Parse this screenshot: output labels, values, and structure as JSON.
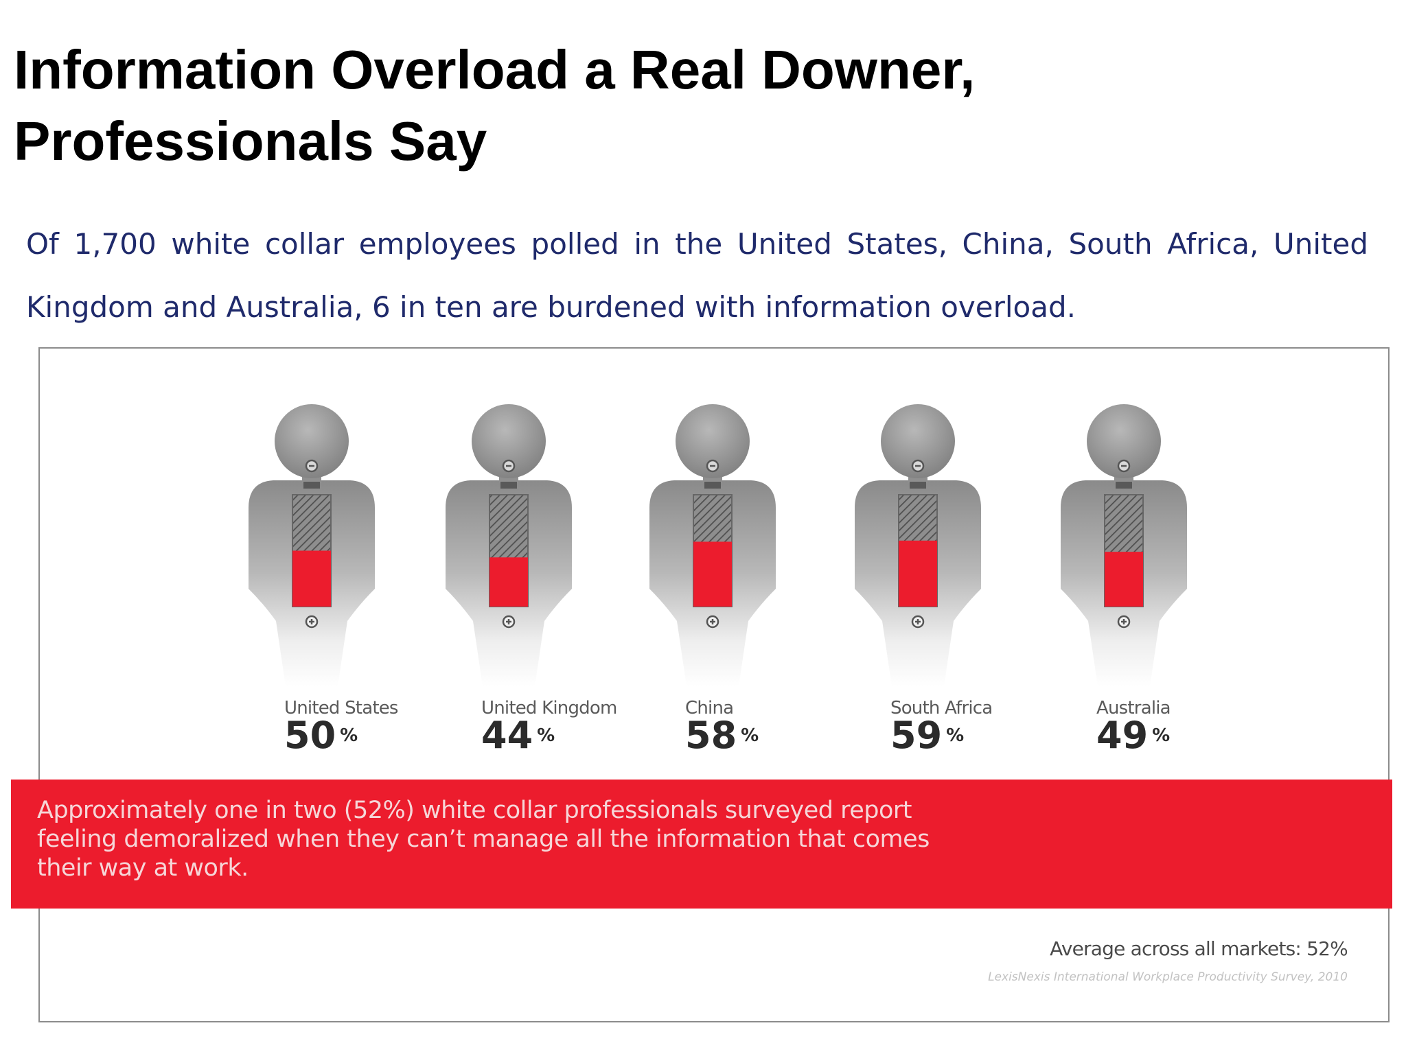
{
  "title": "Information Overload a Real Downer, Professionals Say",
  "intro": "Of 1,700 white collar employees polled in the United States, China, South Africa, United Kingdom and Australia, 6 in ten are burdened with information overload.",
  "band_text": "Approximately one in two (52%) white collar professionals surveyed report feeling demoralized when they can’t manage all the information that comes their way at work.",
  "average_note": "Average across all markets: 52%",
  "source_note": "LexisNexis International Workplace Productivity Survey, 2010",
  "colors": {
    "fill_red": "#ec1c2d",
    "figure_gray": "#9a9a9a",
    "title_black": "#000000",
    "intro_navy": "#1f2a6b"
  },
  "icons": {
    "battery_minus": "minus-icon",
    "battery_plus": "plus-icon"
  },
  "chart_data": {
    "type": "bar",
    "title": "",
    "xlabel": "",
    "ylabel": "",
    "ylim": [
      0,
      100
    ],
    "unit": "%",
    "categories": [
      "United States",
      "United Kingdom",
      "China",
      "South Africa",
      "Australia"
    ],
    "values": [
      50,
      44,
      58,
      59,
      49
    ]
  }
}
